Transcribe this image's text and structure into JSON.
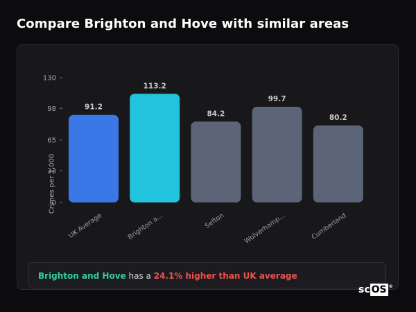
{
  "title": "Compare Brighton and Hove with similar areas",
  "chart_data": {
    "type": "bar",
    "title": "",
    "xlabel": "",
    "ylabel": "Crimes per 1,000",
    "ylim": [
      0,
      130
    ],
    "yticks": [
      0,
      33,
      65,
      98,
      130
    ],
    "categories": [
      "UK Average",
      "Brighton a...",
      "Sefton",
      "Wolverhamp...",
      "Cumberland"
    ],
    "values": [
      91.2,
      113.2,
      84.2,
      99.7,
      80.2
    ],
    "value_labels": [
      "91.2",
      "113.2",
      "84.2",
      "99.7",
      "80.2"
    ],
    "bar_colors": [
      "#3a78e8",
      "#22c3dd",
      "#5b6577",
      "#5b6577",
      "#5b6577"
    ],
    "grid": false,
    "legend": "none"
  },
  "summary": {
    "area": "Brighton and Hove",
    "middle": " has a ",
    "difference": "24.1% higher than UK average"
  },
  "logo": {
    "text_left": "sc",
    "text_box": "OS",
    "mark": "®"
  }
}
